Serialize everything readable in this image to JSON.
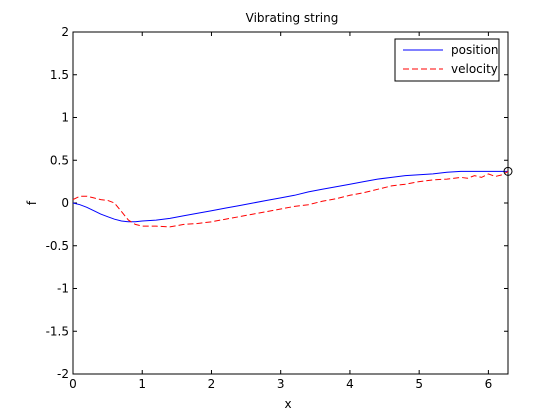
{
  "chart_data": {
    "type": "line",
    "title": "Vibrating string",
    "xlabel": "x",
    "ylabel": "f",
    "xlim": [
      0,
      6.2832
    ],
    "ylim": [
      -2,
      2
    ],
    "xticks": [
      0,
      1,
      2,
      3,
      4,
      5,
      6
    ],
    "yticks": [
      -2,
      -1.5,
      -1,
      -0.5,
      0,
      0.5,
      1,
      1.5,
      2
    ],
    "xtick_labels": [
      "0",
      "1",
      "2",
      "3",
      "4",
      "5",
      "6"
    ],
    "ytick_labels": [
      "-2",
      "-1.5",
      "-1",
      "-0.5",
      "0",
      "0.5",
      "1",
      "1.5",
      "2"
    ],
    "grid": false,
    "legend_position": "top-right",
    "series": [
      {
        "name": "position",
        "color": "#0000ff",
        "style": "solid",
        "x": [
          0,
          0.1,
          0.2,
          0.3,
          0.4,
          0.5,
          0.6,
          0.7,
          0.8,
          0.9,
          1.0,
          1.2,
          1.4,
          1.6,
          1.8,
          2.0,
          2.2,
          2.4,
          2.6,
          2.8,
          3.0,
          3.2,
          3.4,
          3.6,
          3.8,
          4.0,
          4.2,
          4.4,
          4.6,
          4.8,
          5.0,
          5.2,
          5.4,
          5.6,
          5.8,
          6.0,
          6.2,
          6.2832
        ],
        "y": [
          0,
          -0.02,
          -0.05,
          -0.09,
          -0.13,
          -0.16,
          -0.19,
          -0.21,
          -0.22,
          -0.22,
          -0.21,
          -0.2,
          -0.18,
          -0.15,
          -0.12,
          -0.09,
          -0.06,
          -0.03,
          0.0,
          0.03,
          0.06,
          0.09,
          0.13,
          0.16,
          0.19,
          0.22,
          0.25,
          0.28,
          0.3,
          0.32,
          0.33,
          0.34,
          0.36,
          0.37,
          0.37,
          0.37,
          0.37,
          0.37
        ]
      },
      {
        "name": "velocity",
        "color": "#ff0000",
        "style": "dashed",
        "x": [
          0,
          0.1,
          0.2,
          0.3,
          0.4,
          0.5,
          0.6,
          0.7,
          0.8,
          0.9,
          1.0,
          1.2,
          1.4,
          1.6,
          1.8,
          2.0,
          2.2,
          2.4,
          2.6,
          2.8,
          3.0,
          3.2,
          3.4,
          3.6,
          3.8,
          4.0,
          4.2,
          4.4,
          4.6,
          4.8,
          5.0,
          5.2,
          5.4,
          5.6,
          5.7,
          5.8,
          5.9,
          6.0,
          6.1,
          6.2,
          6.2832
        ],
        "y": [
          0.04,
          0.08,
          0.08,
          0.06,
          0.04,
          0.03,
          0.0,
          -0.1,
          -0.2,
          -0.25,
          -0.27,
          -0.27,
          -0.28,
          -0.25,
          -0.24,
          -0.22,
          -0.19,
          -0.16,
          -0.13,
          -0.1,
          -0.07,
          -0.04,
          -0.02,
          0.02,
          0.05,
          0.09,
          0.12,
          0.16,
          0.2,
          0.22,
          0.25,
          0.27,
          0.28,
          0.3,
          0.29,
          0.32,
          0.3,
          0.34,
          0.31,
          0.33,
          0.37
        ]
      }
    ],
    "annotations": [
      {
        "type": "circle-marker",
        "x": 6.2832,
        "y": 0.37,
        "color": "#000000"
      }
    ]
  }
}
